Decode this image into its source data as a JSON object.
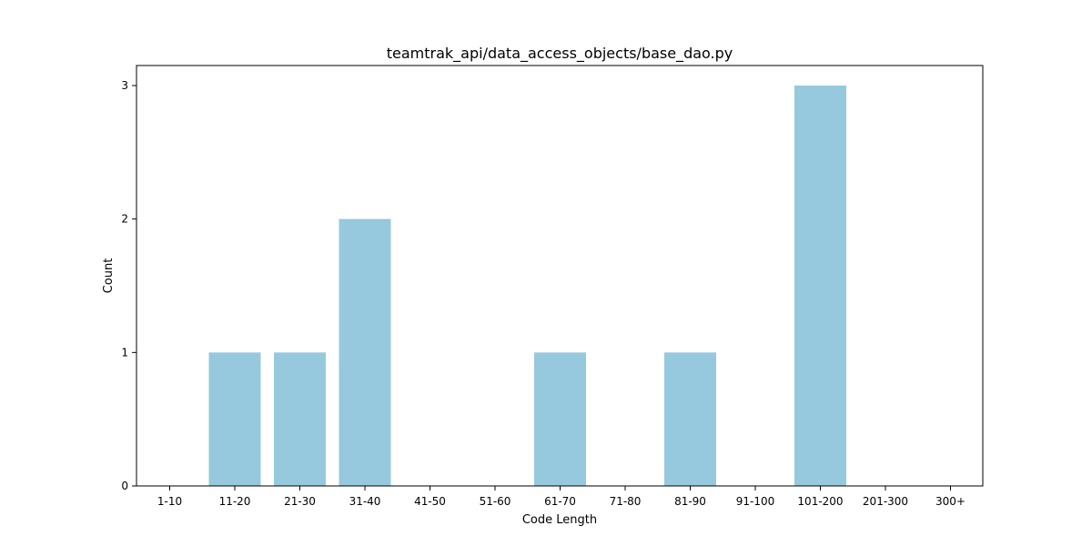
{
  "chart_data": {
    "type": "bar",
    "title": "teamtrak_api/data_access_objects/base_dao.py",
    "xlabel": "Code Length",
    "ylabel": "Count",
    "categories": [
      "1-10",
      "11-20",
      "21-30",
      "31-40",
      "41-50",
      "51-60",
      "61-70",
      "71-80",
      "81-90",
      "91-100",
      "101-200",
      "201-300",
      "300+"
    ],
    "values": [
      0,
      1,
      1,
      2,
      0,
      0,
      1,
      0,
      1,
      0,
      3,
      0,
      0
    ],
    "ylim": [
      0,
      3.15
    ],
    "yticks": [
      0,
      1,
      2,
      3
    ],
    "bar_color": "#96c9dd",
    "grid": false,
    "legend": "none"
  }
}
